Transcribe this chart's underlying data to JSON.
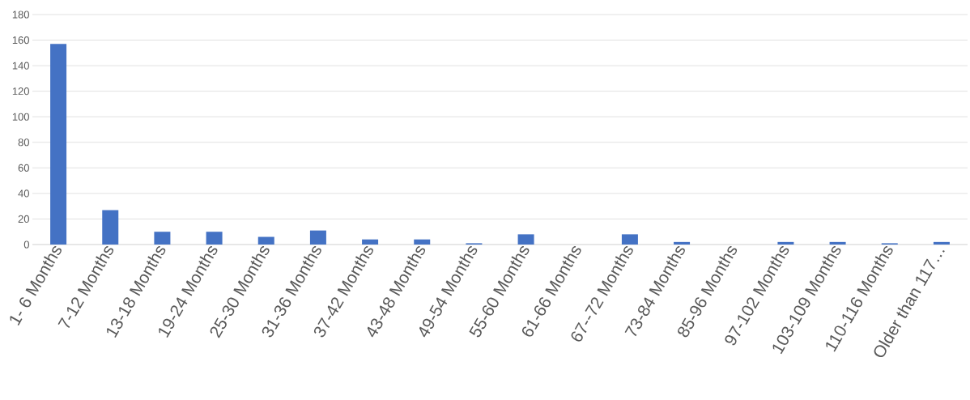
{
  "chart_data": {
    "type": "bar",
    "categories": [
      "1- 6 Months",
      "7-12 Months",
      "13-18 Months",
      "19-24 Months",
      "25-30 Months",
      "31-36 Months",
      "37-42 Months",
      "43-48 Months",
      "49-54 Months",
      "55-60 Months",
      "61-66 Months",
      "67--72 Months",
      "73-84 Months",
      "85-96 Months",
      "97-102 Months",
      "103-109 Months",
      "110-116 Months",
      "Older than 117…"
    ],
    "values": [
      157,
      27,
      10,
      10,
      6,
      11,
      4,
      4,
      1,
      8,
      0,
      8,
      2,
      0,
      2,
      2,
      1,
      2
    ],
    "color": "#4472c4",
    "ylim": [
      0,
      180
    ],
    "yticks": [
      0,
      20,
      40,
      60,
      80,
      100,
      120,
      140,
      160,
      180
    ],
    "grid": "y"
  }
}
